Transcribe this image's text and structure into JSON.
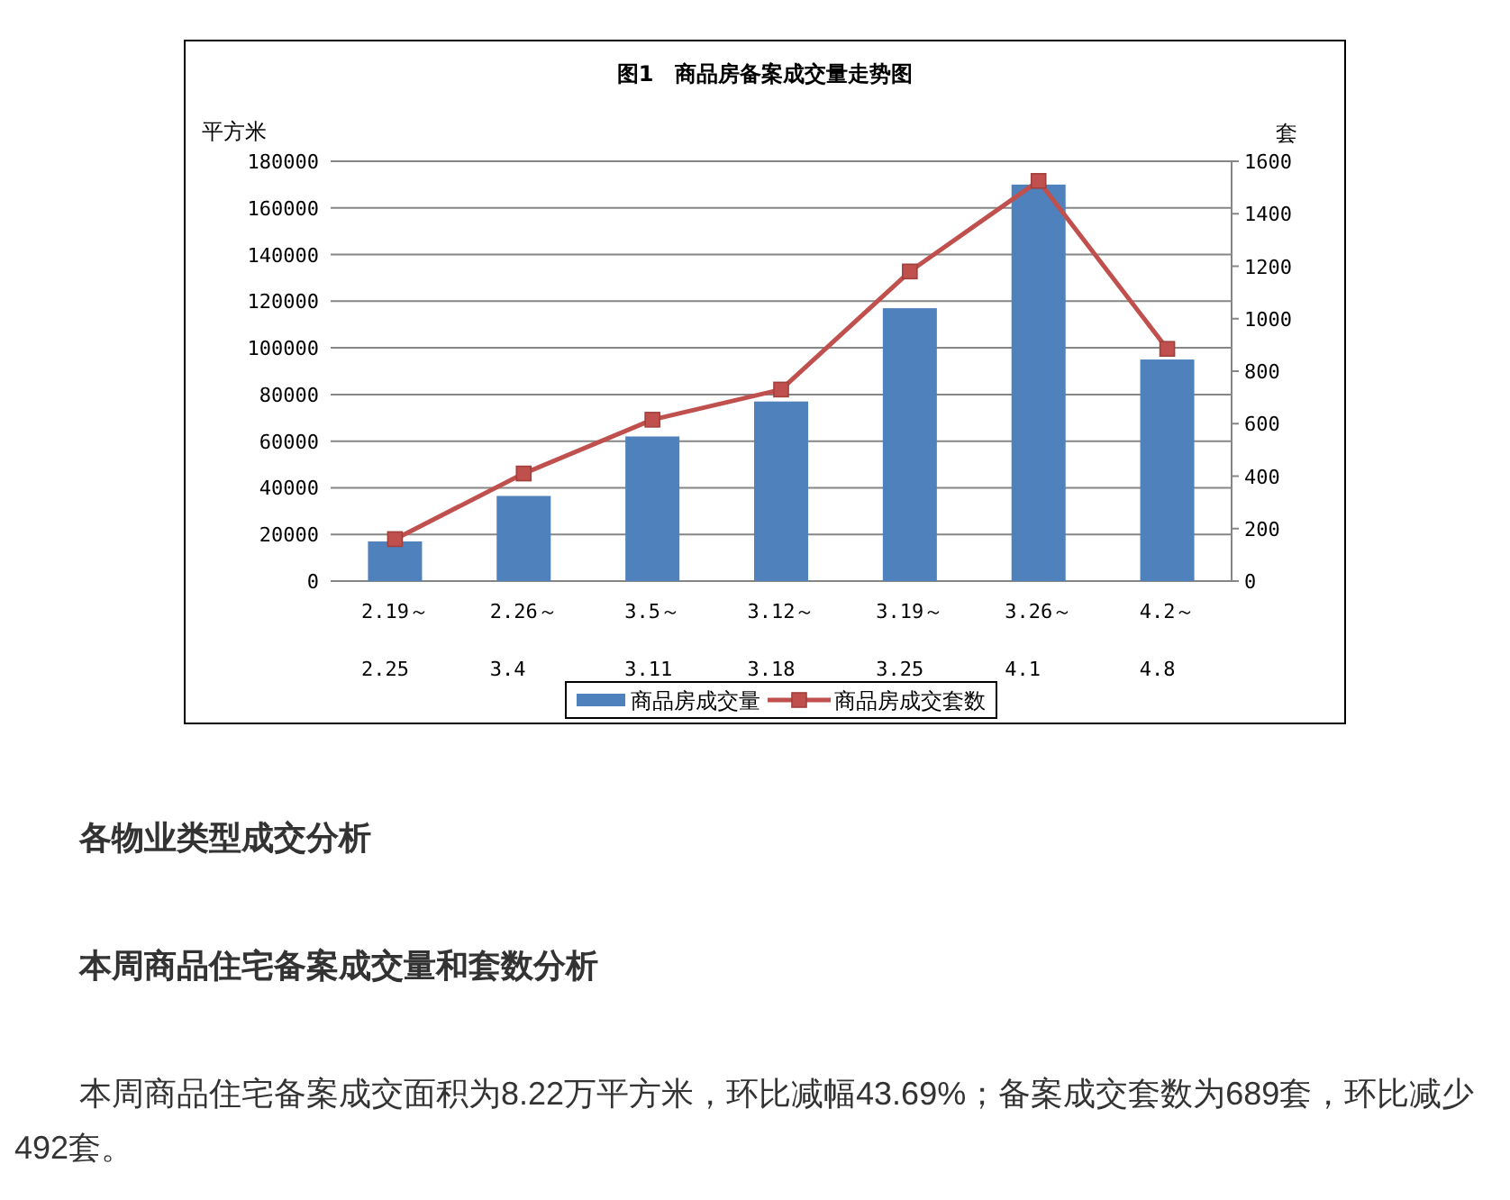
{
  "chart_data": {
    "type": "bar",
    "title": "图1　商品房备案成交量走势图",
    "ylabel": "平方米",
    "y2label": "套",
    "categories": [
      "2.19～\n2.25",
      "2.26～\n3.4",
      "3.5～\n3.11",
      "3.12～\n3.18",
      "3.19～\n3.25",
      "3.26～\n4.1",
      "4.2～\n4.8"
    ],
    "series": [
      {
        "name": "商品房成交量",
        "color": "#4f81bd",
        "values": [
          17000,
          36500,
          62000,
          77000,
          117000,
          170000,
          95000
        ]
      },
      {
        "name": "商品房成交套数",
        "type": "line",
        "axis": "y2",
        "color": "#c0504d",
        "values": [
          160,
          410,
          615,
          730,
          1180,
          1525,
          885
        ]
      }
    ],
    "ylim": [
      0,
      180000
    ],
    "yticks": [
      0,
      20000,
      40000,
      60000,
      80000,
      100000,
      120000,
      140000,
      160000,
      180000
    ],
    "y2lim": [
      0,
      1600
    ],
    "y2ticks": [
      0,
      200,
      400,
      600,
      800,
      1000,
      1200,
      1400,
      1600
    ],
    "grid": "y",
    "legend": "bottom",
    "marker": "square",
    "annotations": [
      "各物业类型成交分析",
      "本周商品住宅备案成交量和套数分析",
      "本周商品住宅备案成交面积为8.22万平方米，环比减幅43.69%；备案成交套数为689套，环比减少492套。"
    ]
  }
}
